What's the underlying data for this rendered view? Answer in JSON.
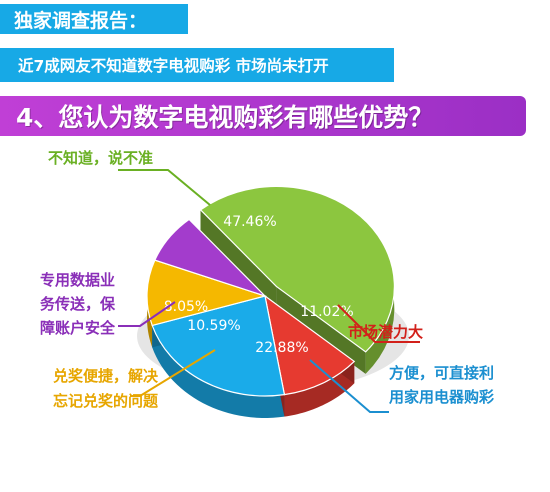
{
  "header": {
    "line1": "独家调查报告：",
    "line2": "近7成网友不知道数字电视购彩 市场尚未打开",
    "question": "4、您认为数字电视购彩有哪些优势？"
  },
  "colors": {
    "banner_blue": "#17a9e6",
    "banner_purple": "#b03bd0"
  },
  "chart_data": {
    "type": "pie",
    "title": "",
    "slices": [
      {
        "label": "不知道，说不准",
        "value": 47.46,
        "value_label": "47.46%",
        "color": "#8cc63f",
        "label_color": "#6ab023"
      },
      {
        "label": "市场潜力大",
        "value": 11.02,
        "value_label": "11.02%",
        "color": "#e63a30",
        "label_color": "#d2201a"
      },
      {
        "label": "方便，可直接利用家用电器购彩",
        "value": 22.88,
        "value_label": "22.88%",
        "color": "#1aabe9",
        "label_color": "#1b8fd0"
      },
      {
        "label": "兑奖便捷，解决忘记兑奖的问题",
        "value": 10.59,
        "value_label": "10.59%",
        "color": "#f5b800",
        "label_color": "#e7a600"
      },
      {
        "label": "专用数据业务传送，保障账户安全",
        "value": 8.05,
        "value_label": "8.05%",
        "color": "#a33ccc",
        "label_color": "#8a2fb8"
      }
    ]
  }
}
